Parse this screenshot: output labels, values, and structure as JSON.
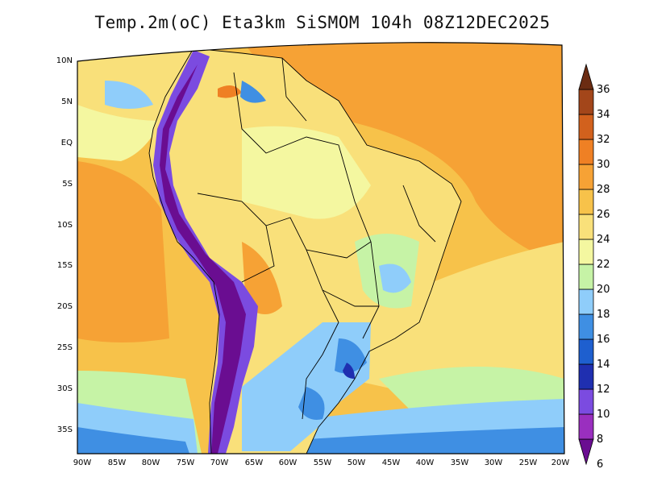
{
  "title": "Temp.2m(oC) Eta3km SiSMOM 104h 08Z12DEC2025",
  "lat_labels": [
    "10N",
    "5N",
    "EQ",
    "5S",
    "10S",
    "15S",
    "20S",
    "25S",
    "30S",
    "35S"
  ],
  "lon_labels": [
    "90W",
    "85W",
    "80W",
    "75W",
    "70W",
    "65W",
    "60W",
    "55W",
    "50W",
    "45W",
    "40W",
    "35W",
    "30W",
    "25W",
    "20W"
  ],
  "colorbar": {
    "labels": [
      "6",
      "8",
      "10",
      "12",
      "14",
      "16",
      "18",
      "20",
      "22",
      "24",
      "26",
      "28",
      "30",
      "32",
      "34",
      "36"
    ],
    "colors": [
      "#6a0d91",
      "#9a2fbf",
      "#7b4be0",
      "#1f2fb0",
      "#1e5fcf",
      "#3f8fe3",
      "#8fcdfa",
      "#c6f3a6",
      "#f4f7a0",
      "#f9e07a",
      "#f7c24a",
      "#f6a235",
      "#ef8024",
      "#d2611d",
      "#a3461a",
      "#6b2c12"
    ]
  }
}
